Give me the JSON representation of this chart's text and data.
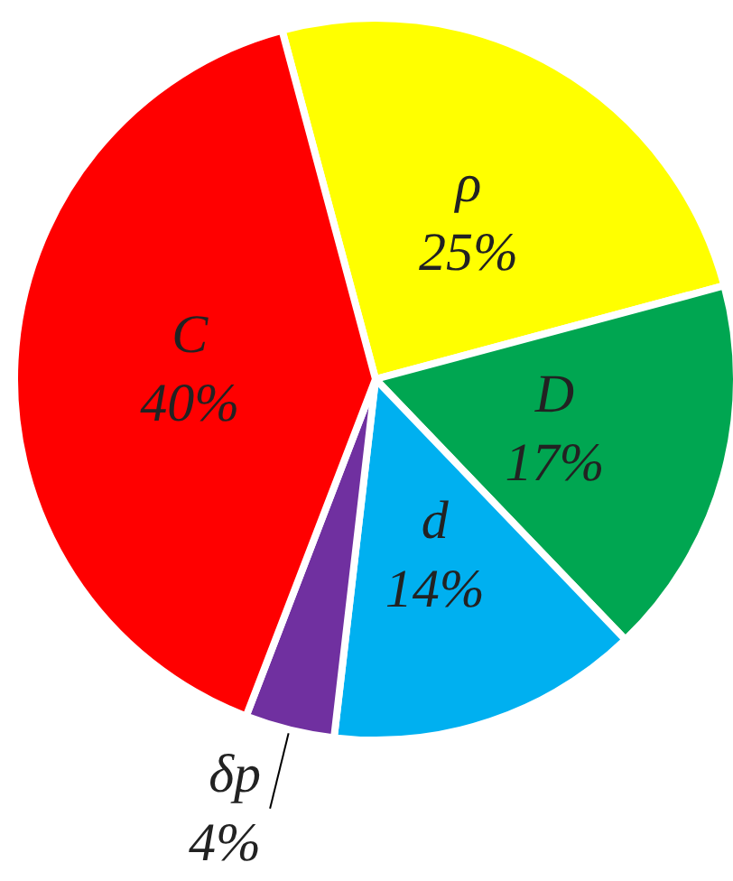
{
  "chart_data": {
    "type": "pie",
    "categories": [
      "ρ",
      "D",
      "d",
      "δp",
      "C"
    ],
    "values": [
      25,
      17,
      14,
      4,
      40
    ],
    "value_labels": [
      "25%",
      "17%",
      "14%",
      "4%",
      "40%"
    ],
    "colors": [
      "#ffff00",
      "#00a651",
      "#00b0f0",
      "#7030a0",
      "#ff0000"
    ],
    "legend": false
  }
}
